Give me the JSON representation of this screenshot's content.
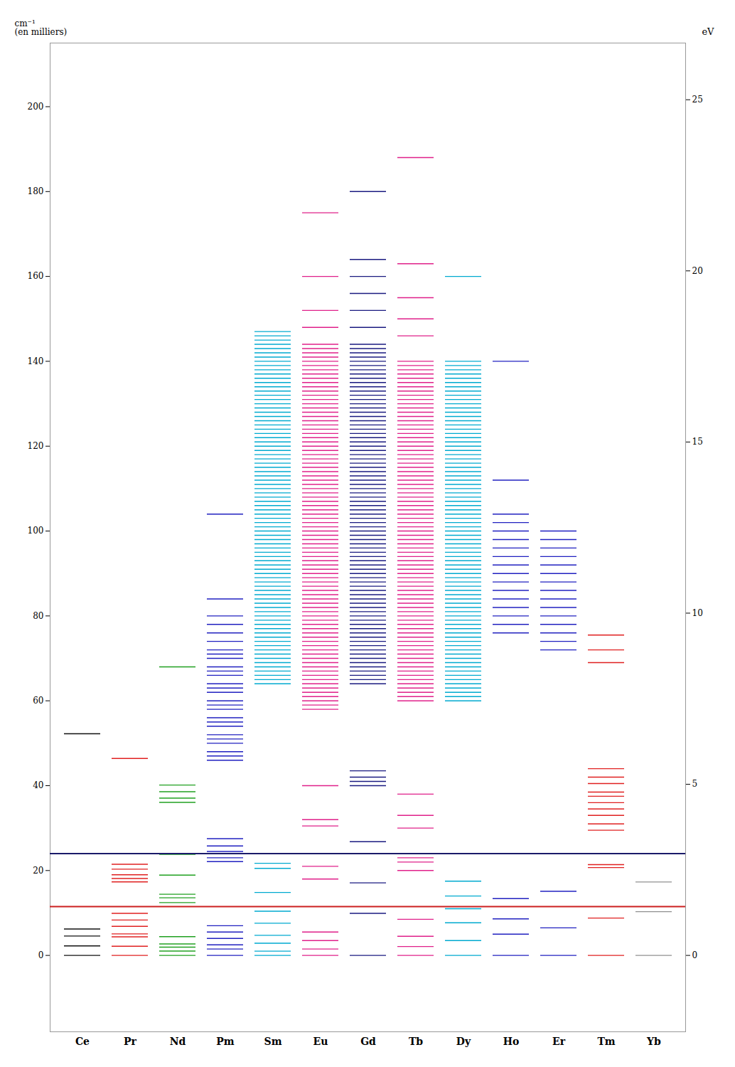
{
  "chart_data": {
    "type": "levels",
    "categories": [
      "Ce",
      "Pr",
      "Nd",
      "Pm",
      "Sm",
      "Eu",
      "Gd",
      "Tb",
      "Dy",
      "Ho",
      "Er",
      "Tm",
      "Yb"
    ],
    "colors": [
      "#111111",
      "#e02020",
      "#20a020",
      "#2020c0",
      "#00aad0",
      "#e0208a",
      "#1a1a80",
      "#e0208a",
      "#00aad0",
      "#2020c0",
      "#2020c0",
      "#e02020",
      "#909090"
    ],
    "values": [
      [
        0.0,
        2.25,
        4.56,
        6.21,
        52.23
      ],
      [
        0.0,
        2.15,
        4.39,
        5.07,
        6.85,
        8.33,
        9.92,
        17.33,
        18.12,
        19.0,
        20.33,
        21.47,
        46.4
      ],
      [
        0.0,
        1.02,
        1.94,
        2.69,
        4.42,
        12.45,
        13.58,
        14.42,
        18.91,
        23.8,
        36.07,
        37.06,
        38.57,
        40.15,
        68.0
      ],
      [
        0.0,
        1.5,
        2.5,
        4.0,
        5.5,
        7.0,
        22.1,
        23.0,
        24.5,
        25.8,
        27.5,
        46,
        47,
        48,
        50,
        51,
        52,
        54,
        55,
        56,
        58,
        59,
        60,
        62,
        63,
        64,
        66,
        67,
        68,
        70,
        71,
        72,
        74,
        76,
        78,
        80,
        84,
        104
      ],
      [
        0.0,
        1.0,
        2.88,
        4.74,
        7.59,
        10.42,
        14.83,
        20.5,
        21.7,
        64,
        65,
        66,
        67,
        68,
        69,
        70,
        71,
        72,
        73,
        74,
        75,
        76,
        77,
        78,
        79,
        80,
        81,
        82,
        83,
        84,
        85,
        86,
        87,
        88,
        89,
        90,
        91,
        92,
        93,
        94,
        95,
        96,
        97,
        98,
        99,
        100,
        101,
        102,
        103,
        104,
        105,
        106,
        107,
        108,
        109,
        110,
        111,
        112,
        113,
        114,
        115,
        116,
        117,
        118,
        119,
        120,
        121,
        122,
        123,
        124,
        125,
        126,
        127,
        128,
        129,
        130,
        131,
        132,
        133,
        134,
        135,
        136,
        137,
        138,
        139,
        140,
        141,
        142,
        143,
        144,
        145,
        146,
        147
      ],
      [
        0.0,
        1.5,
        3.5,
        5.5,
        18.0,
        21.0,
        30.5,
        32.0,
        40.0,
        58,
        59,
        60,
        61,
        62,
        63,
        64,
        65,
        66,
        67,
        68,
        69,
        70,
        71,
        72,
        73,
        74,
        75,
        76,
        77,
        78,
        79,
        80,
        81,
        82,
        83,
        84,
        85,
        86,
        87,
        88,
        89,
        90,
        91,
        92,
        93,
        94,
        95,
        96,
        97,
        98,
        99,
        100,
        101,
        102,
        103,
        104,
        105,
        106,
        107,
        108,
        109,
        110,
        111,
        112,
        113,
        114,
        115,
        116,
        117,
        118,
        119,
        120,
        121,
        122,
        123,
        124,
        125,
        126,
        127,
        128,
        129,
        130,
        131,
        132,
        133,
        134,
        135,
        136,
        137,
        138,
        139,
        140,
        141,
        142,
        143,
        144,
        148,
        152,
        160,
        175
      ],
      [
        0.0,
        9.9,
        17.1,
        26.8,
        40.0,
        41.0,
        42.0,
        43.5,
        64,
        65,
        66,
        67,
        68,
        69,
        70,
        71,
        72,
        73,
        74,
        75,
        76,
        77,
        78,
        79,
        80,
        81,
        82,
        83,
        84,
        85,
        86,
        87,
        88,
        89,
        90,
        91,
        92,
        93,
        94,
        95,
        96,
        97,
        98,
        99,
        100,
        101,
        102,
        103,
        104,
        105,
        106,
        107,
        108,
        109,
        110,
        111,
        112,
        113,
        114,
        115,
        116,
        117,
        118,
        119,
        120,
        121,
        122,
        123,
        124,
        125,
        126,
        127,
        128,
        129,
        130,
        131,
        132,
        133,
        134,
        135,
        136,
        137,
        138,
        139,
        140,
        141,
        142,
        143,
        144,
        148,
        152,
        156,
        160,
        164,
        180
      ],
      [
        0.0,
        2.1,
        4.5,
        8.5,
        20.0,
        22.0,
        23.0,
        30.0,
        33.0,
        38.0,
        60,
        61,
        62,
        63,
        64,
        65,
        66,
        67,
        68,
        69,
        70,
        71,
        72,
        73,
        74,
        75,
        76,
        77,
        78,
        79,
        80,
        81,
        82,
        83,
        84,
        85,
        86,
        87,
        88,
        89,
        90,
        91,
        92,
        93,
        94,
        95,
        96,
        97,
        98,
        99,
        100,
        101,
        102,
        103,
        104,
        105,
        106,
        107,
        108,
        109,
        110,
        111,
        112,
        113,
        114,
        115,
        116,
        117,
        118,
        119,
        120,
        121,
        122,
        123,
        124,
        125,
        126,
        127,
        128,
        129,
        130,
        131,
        132,
        133,
        134,
        135,
        136,
        137,
        138,
        139,
        140,
        146,
        150,
        155,
        163,
        188
      ],
      [
        0.0,
        3.5,
        7.7,
        11.0,
        14.0,
        17.5,
        60,
        61,
        62,
        63,
        64,
        65,
        66,
        67,
        68,
        69,
        70,
        71,
        72,
        73,
        74,
        75,
        76,
        77,
        78,
        79,
        80,
        81,
        82,
        83,
        84,
        85,
        86,
        87,
        88,
        89,
        90,
        91,
        92,
        93,
        94,
        95,
        96,
        97,
        98,
        99,
        100,
        101,
        102,
        103,
        104,
        105,
        106,
        107,
        108,
        109,
        110,
        111,
        112,
        113,
        114,
        115,
        116,
        117,
        118,
        119,
        120,
        121,
        122,
        123,
        124,
        125,
        126,
        127,
        128,
        129,
        130,
        131,
        132,
        133,
        134,
        135,
        136,
        137,
        138,
        139,
        140,
        160
      ],
      [
        0.0,
        5.0,
        8.6,
        13.4,
        76,
        78,
        80,
        82,
        84,
        86,
        88,
        90,
        92,
        94,
        96,
        98,
        100,
        102,
        104,
        112,
        140
      ],
      [
        0.0,
        6.5,
        15.1,
        72,
        74,
        76,
        78,
        80,
        82,
        84,
        86,
        88,
        90,
        92,
        94,
        96,
        98,
        100
      ],
      [
        0.0,
        8.8,
        20.7,
        21.4,
        29.5,
        31.0,
        33.0,
        34.5,
        36.0,
        37.5,
        38.5,
        40.5,
        42.0,
        44.0,
        69.0,
        72.0,
        75.5
      ],
      [
        0.0,
        10.3,
        17.3
      ]
    ],
    "reference_lines": [
      {
        "value": 24.0,
        "color": "#1a1a6a"
      },
      {
        "value": 11.5,
        "color": "#cc2020"
      }
    ],
    "ylabel": "cm⁻¹\n(en milliers)",
    "y2label": "eV",
    "ylim": [
      -18,
      215
    ],
    "yticks": [
      0,
      20,
      40,
      60,
      80,
      100,
      120,
      140,
      160,
      180,
      200
    ],
    "y2lim": [
      -2.231728,
      26.656748
    ],
    "y2ticks": [
      0,
      5,
      10,
      15,
      20,
      25
    ],
    "grid": false
  }
}
